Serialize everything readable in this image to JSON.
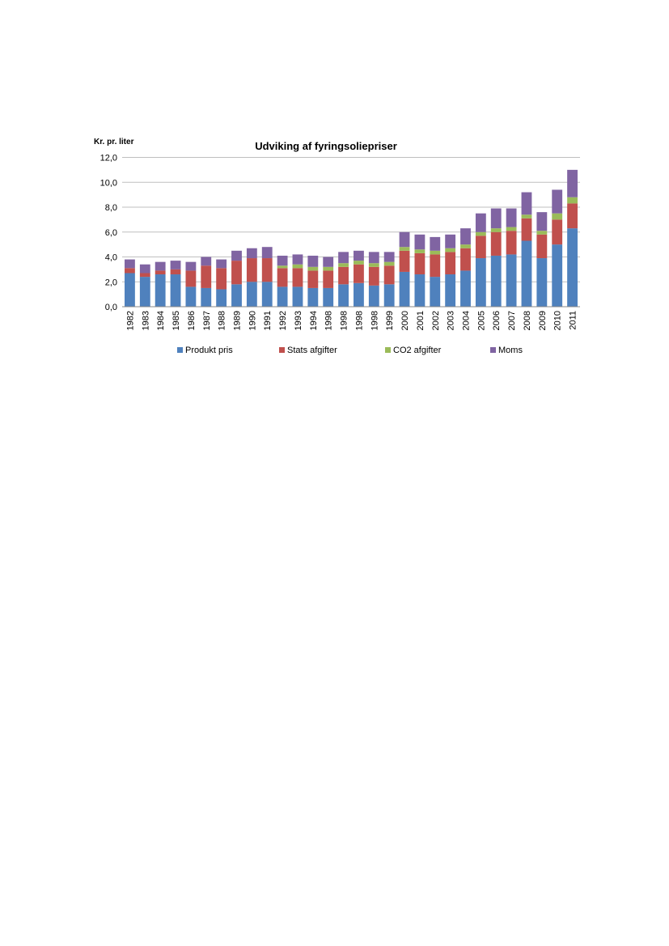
{
  "chart_data": {
    "type": "bar",
    "stacked": true,
    "title": "Udviking af fyringsoliepriser",
    "ylabel": "Kr. pr. liter",
    "xlabel": "",
    "ylim": [
      0,
      12
    ],
    "ytick_labels": [
      "0,0",
      "2,0",
      "4,0",
      "6,0",
      "8,0",
      "10,0",
      "12,0"
    ],
    "grid": true,
    "legend_position": "bottom",
    "categories": [
      "1982",
      "1983",
      "1984",
      "1985",
      "1986",
      "1987",
      "1988",
      "1989",
      "1990",
      "1991",
      "1992",
      "1993",
      "1994",
      "1998",
      "1998",
      "1998",
      "1998",
      "1999",
      "2000",
      "2001",
      "2002",
      "2003",
      "2004",
      "2005",
      "2006",
      "2007",
      "2008",
      "2009",
      "2010",
      "2011"
    ],
    "series": [
      {
        "name": "Produkt pris",
        "color": "#4F81BD",
        "values": [
          2.7,
          2.4,
          2.6,
          2.6,
          1.6,
          1.5,
          1.4,
          1.8,
          2.0,
          2.0,
          1.6,
          1.6,
          1.5,
          1.5,
          1.8,
          1.9,
          1.7,
          1.8,
          2.8,
          2.6,
          2.4,
          2.6,
          2.9,
          3.9,
          4.1,
          4.2,
          5.3,
          3.9,
          5.0,
          6.3
        ]
      },
      {
        "name": "Stats afgifter",
        "color": "#C0504D",
        "values": [
          0.4,
          0.3,
          0.3,
          0.4,
          1.3,
          1.8,
          1.7,
          1.9,
          1.9,
          1.9,
          1.5,
          1.5,
          1.4,
          1.4,
          1.4,
          1.5,
          1.5,
          1.5,
          1.7,
          1.7,
          1.8,
          1.8,
          1.8,
          1.8,
          1.9,
          1.9,
          1.8,
          1.9,
          2.0,
          2.0
        ]
      },
      {
        "name": "CO2 afgifter",
        "color": "#9BBB59",
        "values": [
          0,
          0,
          0,
          0,
          0,
          0,
          0,
          0,
          0,
          0,
          0.2,
          0.3,
          0.3,
          0.3,
          0.3,
          0.3,
          0.3,
          0.3,
          0.3,
          0.3,
          0.3,
          0.3,
          0.3,
          0.3,
          0.3,
          0.3,
          0.3,
          0.3,
          0.5,
          0.5
        ]
      },
      {
        "name": "Moms",
        "color": "#8064A2",
        "values": [
          0.7,
          0.7,
          0.7,
          0.7,
          0.7,
          0.7,
          0.7,
          0.8,
          0.8,
          0.9,
          0.8,
          0.8,
          0.9,
          0.8,
          0.9,
          0.8,
          0.9,
          0.8,
          1.2,
          1.2,
          1.1,
          1.1,
          1.3,
          1.5,
          1.6,
          1.5,
          1.8,
          1.5,
          1.9,
          2.2
        ]
      }
    ]
  }
}
